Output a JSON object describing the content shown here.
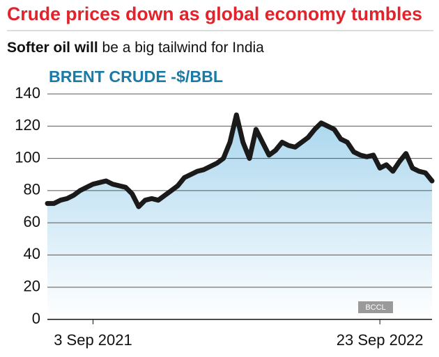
{
  "chart_data": {
    "type": "line",
    "title": "Crude prices down as global economy tumbles",
    "subtitle": [
      "Softer oil will",
      "be a big tailwind for India"
    ],
    "ylabel": "BRENT CRUDE -$/BBL",
    "watermark": "BCCL",
    "categories": [
      null,
      null,
      null,
      null,
      null,
      null,
      null,
      "3 Sep 2021",
      null,
      null,
      null,
      null,
      null,
      null,
      null,
      null,
      null,
      null,
      null,
      null,
      null,
      null,
      null,
      null,
      null,
      null,
      null,
      null,
      null,
      null,
      null,
      null,
      null,
      null,
      null,
      null,
      null,
      null,
      null,
      null,
      null,
      null,
      null,
      null,
      null,
      null,
      null,
      null,
      null,
      null,
      null,
      "23 Sep 2022",
      null,
      null,
      null,
      null,
      null,
      null,
      null,
      null
    ],
    "values": [
      72,
      72,
      74,
      75,
      77,
      80,
      82,
      84,
      85,
      86,
      84,
      83,
      82,
      78,
      70,
      74,
      75,
      74,
      77,
      80,
      83,
      88,
      90,
      92,
      93,
      95,
      97,
      100,
      110,
      127,
      110,
      100,
      118,
      110,
      102,
      105,
      110,
      108,
      107,
      110,
      113,
      118,
      122,
      120,
      118,
      112,
      110,
      104,
      102,
      101,
      102,
      94,
      96,
      92,
      98,
      103,
      94,
      92,
      91,
      86
    ],
    "color": "#1a1a1a",
    "ylim": [
      0,
      140
    ],
    "yticks": [
      0,
      20,
      40,
      60,
      80,
      100,
      120,
      140
    ],
    "grid": true
  }
}
